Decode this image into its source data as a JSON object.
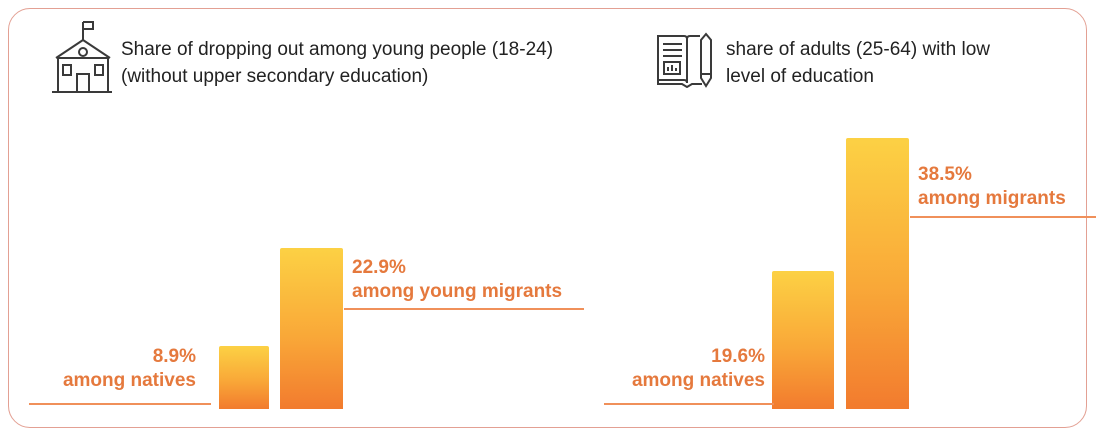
{
  "colors": {
    "frame": "#e3a093",
    "bar_top": "#fcd144",
    "bar_bottom": "#f27b2e",
    "label": "#e5793d",
    "leader": "#f0905a",
    "icon": "#3a3a3a"
  },
  "icons": [
    "school-building-icon",
    "book-icon"
  ],
  "chart_data": [
    {
      "type": "bar",
      "title": "Share of dropping out among young people (18-24) (without upper secondary education)",
      "categories": [
        "among natives",
        "among young migrants"
      ],
      "values": [
        8.9,
        22.9
      ],
      "unit": "%",
      "value_labels": [
        "8.9%",
        "22.9%"
      ]
    },
    {
      "type": "bar",
      "title": "share of adults (25-64) with low level of education",
      "categories": [
        "among natives",
        "among migrants"
      ],
      "values": [
        19.6,
        38.5
      ],
      "unit": "%",
      "value_labels": [
        "19.6%",
        "38.5%"
      ]
    }
  ]
}
